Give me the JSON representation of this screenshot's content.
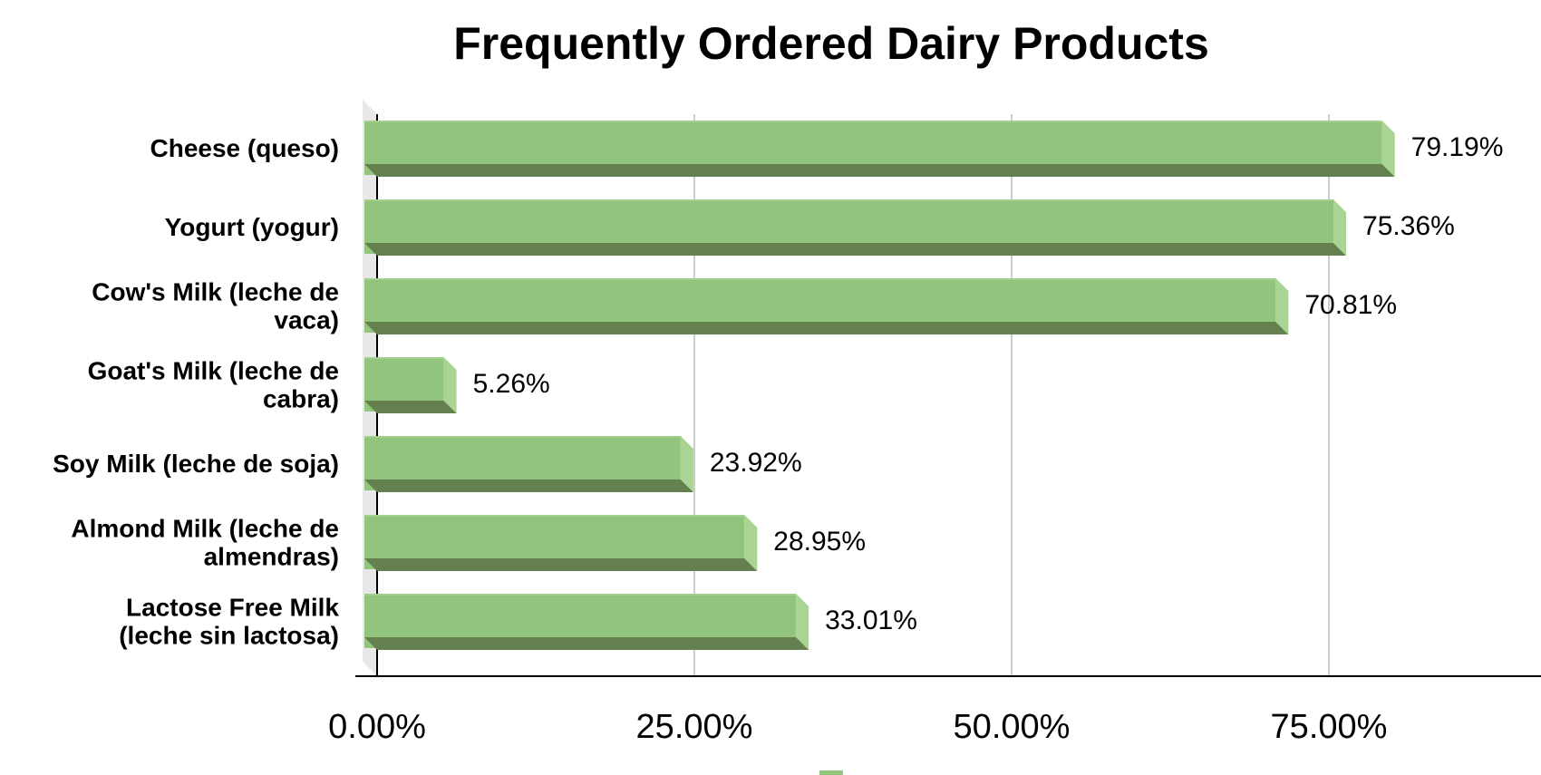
{
  "chart_data": {
    "type": "bar",
    "orientation": "horizontal",
    "title": "Frequently Ordered Dairy Products",
    "categories": [
      "Cheese (queso)",
      "Yogurt (yogur)",
      "Cow's Milk (leche de vaca)",
      "Goat's Milk (leche de cabra)",
      "Soy Milk (leche de soja)",
      "Almond Milk (leche de almendras)",
      "Lactose Free Milk (leche sin lactosa)"
    ],
    "category_label_lines": [
      [
        "Cheese (queso)"
      ],
      [
        "Yogurt (yogur)"
      ],
      [
        "Cow's Milk (leche de",
        "vaca)"
      ],
      [
        "Goat's Milk (leche de",
        "cabra)"
      ],
      [
        "Soy Milk (leche de soja)"
      ],
      [
        "Almond Milk (leche de",
        "almendras)"
      ],
      [
        "Lactose Free Milk",
        "(leche sin lactosa)"
      ]
    ],
    "values": [
      79.19,
      75.36,
      70.81,
      5.26,
      23.92,
      28.95,
      33.01
    ],
    "value_labels": [
      "79.19%",
      "75.36%",
      "70.81%",
      "5.26%",
      "23.92%",
      "28.95%",
      "33.01%"
    ],
    "xlim": [
      0,
      90
    ],
    "x_ticks": [
      0,
      25,
      50,
      75
    ],
    "x_tick_labels": [
      "0.00%",
      "25.00%",
      "50.00%",
      "75.00%"
    ],
    "grid": true,
    "style": "3d",
    "legend": "bottom",
    "colors": {
      "bar_front": "#93c47d",
      "bar_side": "#a9d494",
      "bar_bottom": "#64804f",
      "bar_top_edge": "#a3cf8e",
      "grid": "#cccccc",
      "axis": "#000000",
      "wall": "#e8e8e8"
    }
  }
}
